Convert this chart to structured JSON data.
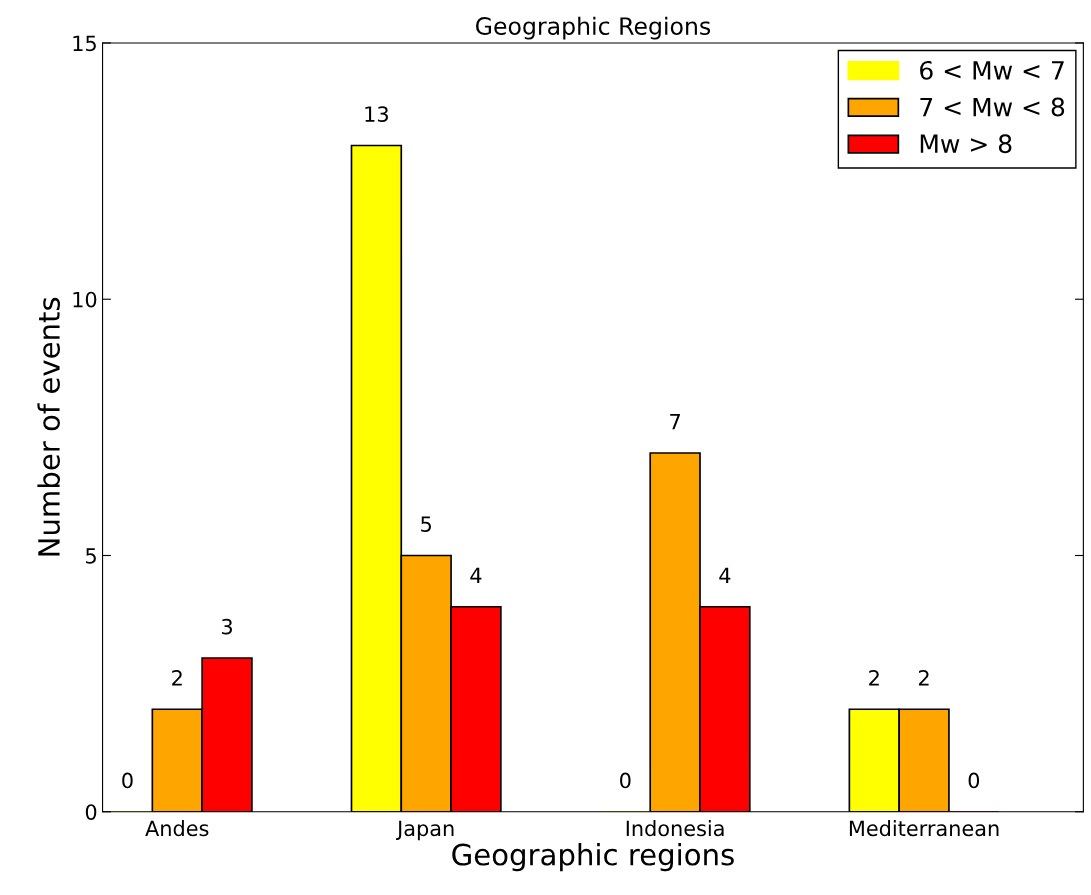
{
  "chart_data": {
    "type": "bar",
    "title": "Geographic Regions",
    "xlabel": "Geographic regions",
    "ylabel": "Number of events",
    "categories": [
      "Andes",
      "Japan",
      "Indonesia",
      "Mediterranean"
    ],
    "series": [
      {
        "name": "6 < Mw < 7",
        "color": "#ffff00",
        "values": [
          0,
          13,
          0,
          2
        ]
      },
      {
        "name": "7 < Mw < 8",
        "color": "#ffa500",
        "values": [
          2,
          5,
          7,
          2
        ]
      },
      {
        "name": "Mw > 8",
        "color": "#ff0000",
        "values": [
          3,
          4,
          4,
          0
        ]
      }
    ],
    "ylim": [
      0,
      15
    ],
    "yticks": [
      0,
      5,
      10,
      15
    ],
    "data_labels": true,
    "legend": "top right",
    "grid": false
  }
}
